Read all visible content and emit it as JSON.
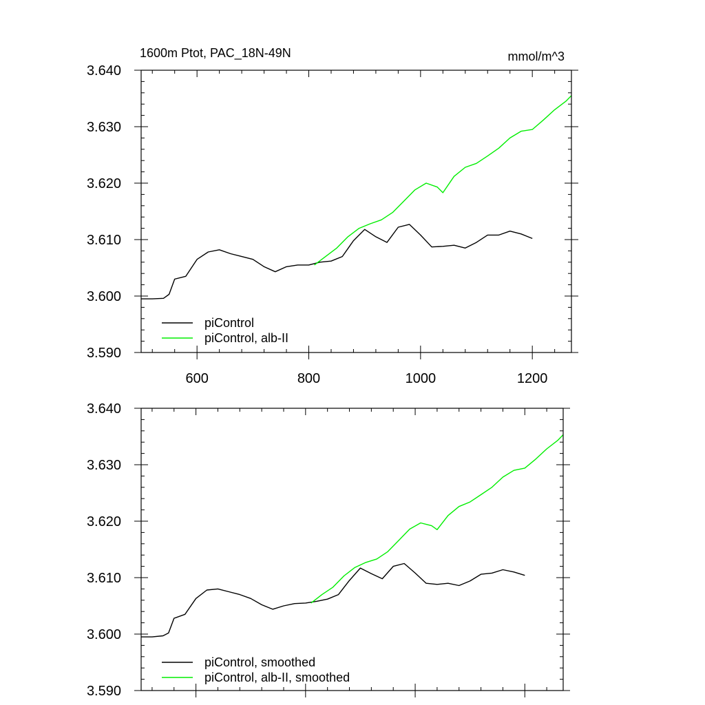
{
  "chart_data": [
    {
      "type": "line",
      "title_left": "1600m Ptot, PAC_18N-49N",
      "title_right": "mmol/m^3",
      "xlim": [
        500,
        1270
      ],
      "ylim": [
        3.59,
        3.64
      ],
      "x_ticks": [
        "600",
        "800",
        "1000",
        "1200"
      ],
      "y_ticks": [
        "3.590",
        "3.600",
        "3.610",
        "3.620",
        "3.630",
        "3.640"
      ],
      "legend": [
        "piControl",
        "piControl, alb-II"
      ],
      "legend_placement": "bottom-left",
      "series": [
        {
          "name": "piControl",
          "color": "#000000",
          "x": [
            500,
            520,
            540,
            550,
            560,
            580,
            600,
            620,
            640,
            660,
            680,
            700,
            720,
            740,
            760,
            780,
            800,
            820,
            840,
            860,
            880,
            900,
            920,
            940,
            960,
            980,
            1000,
            1020,
            1040,
            1060,
            1080,
            1100,
            1120,
            1140,
            1160,
            1180,
            1200
          ],
          "y": [
            3.5995,
            3.5995,
            3.5996,
            3.6003,
            3.603,
            3.6035,
            3.6065,
            3.6078,
            3.6082,
            3.6075,
            3.607,
            3.6065,
            3.6052,
            3.6043,
            3.6052,
            3.6055,
            3.6055,
            3.606,
            3.6062,
            3.607,
            3.6098,
            3.6118,
            3.6105,
            3.6095,
            3.6122,
            3.6127,
            3.6108,
            3.6087,
            3.6088,
            3.609,
            3.6085,
            3.6095,
            3.6108,
            3.6108,
            3.6115,
            3.611,
            3.6102
          ]
        },
        {
          "name": "piControl, alb-II",
          "color": "#00ee00",
          "x": [
            810,
            830,
            850,
            870,
            890,
            910,
            930,
            950,
            970,
            990,
            1010,
            1030,
            1040,
            1060,
            1080,
            1100,
            1120,
            1140,
            1160,
            1180,
            1200,
            1220,
            1240,
            1260,
            1270
          ],
          "y": [
            3.6055,
            3.607,
            3.6085,
            3.6105,
            3.612,
            3.6128,
            3.6135,
            3.6148,
            3.6168,
            3.6188,
            3.62,
            3.6193,
            3.6183,
            3.6212,
            3.6228,
            3.6235,
            3.6248,
            3.6262,
            3.628,
            3.6292,
            3.6295,
            3.6312,
            3.633,
            3.6345,
            3.6355
          ]
        }
      ]
    },
    {
      "type": "line",
      "xlim": [
        500,
        1270
      ],
      "ylim": [
        3.59,
        3.64
      ],
      "y_ticks": [
        "3.590",
        "3.600",
        "3.610",
        "3.620",
        "3.630",
        "3.640"
      ],
      "legend": [
        "piControl, smoothed",
        "piControl, alb-II, smoothed"
      ],
      "legend_placement": "bottom-left",
      "series": [
        {
          "name": "piControl, smoothed",
          "color": "#000000",
          "x": [
            500,
            520,
            540,
            550,
            560,
            580,
            600,
            620,
            640,
            660,
            680,
            700,
            720,
            740,
            760,
            780,
            800,
            820,
            840,
            860,
            880,
            900,
            920,
            940,
            960,
            980,
            1000,
            1020,
            1040,
            1060,
            1080,
            1100,
            1120,
            1140,
            1160,
            1180,
            1200
          ],
          "y": [
            3.5995,
            3.5995,
            3.5997,
            3.6002,
            3.6028,
            3.6035,
            3.6063,
            3.6078,
            3.608,
            3.6075,
            3.607,
            3.6063,
            3.6052,
            3.6044,
            3.605,
            3.6054,
            3.6055,
            3.6058,
            3.6062,
            3.607,
            3.6095,
            3.6117,
            3.6107,
            3.6098,
            3.612,
            3.6125,
            3.6108,
            3.609,
            3.6088,
            3.609,
            3.6086,
            3.6094,
            3.6106,
            3.6108,
            3.6114,
            3.611,
            3.6104
          ]
        },
        {
          "name": "piControl, alb-II, smoothed",
          "color": "#00ee00",
          "x": [
            810,
            830,
            850,
            870,
            890,
            910,
            930,
            950,
            970,
            990,
            1010,
            1030,
            1040,
            1060,
            1080,
            1100,
            1120,
            1140,
            1160,
            1180,
            1200,
            1220,
            1240,
            1260,
            1270
          ],
          "y": [
            3.6055,
            3.607,
            3.6083,
            3.6103,
            3.6118,
            3.6127,
            3.6133,
            3.6146,
            3.6166,
            3.6186,
            3.6197,
            3.6192,
            3.6185,
            3.621,
            3.6226,
            3.6234,
            3.6247,
            3.626,
            3.6278,
            3.629,
            3.6294,
            3.631,
            3.6328,
            3.6343,
            3.6353
          ]
        }
      ]
    }
  ]
}
